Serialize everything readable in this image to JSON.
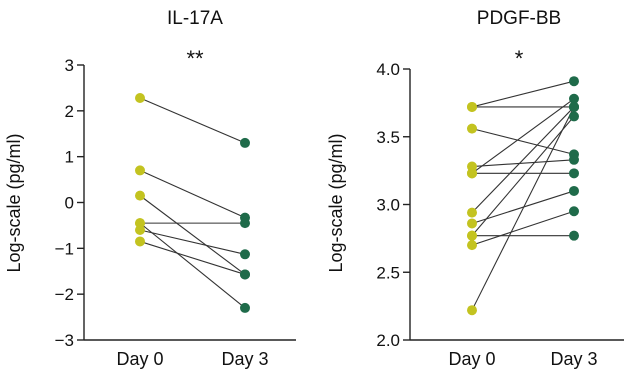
{
  "chart_data": [
    {
      "type": "scatter",
      "subtype": "paired-dot",
      "title": "IL-17A",
      "significance": "**",
      "ylabel": "Log-scale (pg/ml)",
      "xlabel": "",
      "categories": [
        "Day 0",
        "Day 3"
      ],
      "ylim": [
        -3,
        3
      ],
      "yticks": [
        -3,
        -2,
        -1,
        0,
        1,
        2,
        3
      ],
      "ytick_labels": [
        "−3",
        "−2",
        "−1",
        "0",
        "1",
        "2",
        "3"
      ],
      "grid": false,
      "colors": {
        "day0": "#c3c320",
        "day3": "#1f6b4a",
        "line": "#333333"
      },
      "pairs": [
        {
          "day0": 2.28,
          "day3": 1.3
        },
        {
          "day0": 0.7,
          "day3": -0.33
        },
        {
          "day0": 0.15,
          "day3": -1.57
        },
        {
          "day0": -0.45,
          "day3": -0.45
        },
        {
          "day0": -0.45,
          "day3": -2.3
        },
        {
          "day0": -0.6,
          "day3": -1.13
        },
        {
          "day0": -0.85,
          "day3": -1.57
        }
      ]
    },
    {
      "type": "scatter",
      "subtype": "paired-dot",
      "title": "PDGF-BB",
      "significance": "*",
      "ylabel": "Log-scale (pg/ml)",
      "xlabel": "",
      "categories": [
        "Day 0",
        "Day 3"
      ],
      "ylim": [
        2.0,
        4.0
      ],
      "yticks": [
        2.0,
        2.5,
        3.0,
        3.5,
        4.0
      ],
      "ytick_labels": [
        "2.0",
        "2.5",
        "3.0",
        "3.5",
        "4.0"
      ],
      "grid": false,
      "colors": {
        "day0": "#c3c320",
        "day3": "#1f6b4a",
        "line": "#333333"
      },
      "pairs": [
        {
          "day0": 3.72,
          "day3": 3.72
        },
        {
          "day0": 3.72,
          "day3": 3.91
        },
        {
          "day0": 3.56,
          "day3": 3.37
        },
        {
          "day0": 3.28,
          "day3": 3.33
        },
        {
          "day0": 3.23,
          "day3": 3.23
        },
        {
          "day0": 3.23,
          "day3": 3.78
        },
        {
          "day0": 2.94,
          "day3": 3.72
        },
        {
          "day0": 2.86,
          "day3": 3.1
        },
        {
          "day0": 2.77,
          "day3": 2.77
        },
        {
          "day0": 2.77,
          "day3": 3.65
        },
        {
          "day0": 2.7,
          "day3": 2.95
        },
        {
          "day0": 2.22,
          "day3": 3.72
        }
      ]
    }
  ]
}
